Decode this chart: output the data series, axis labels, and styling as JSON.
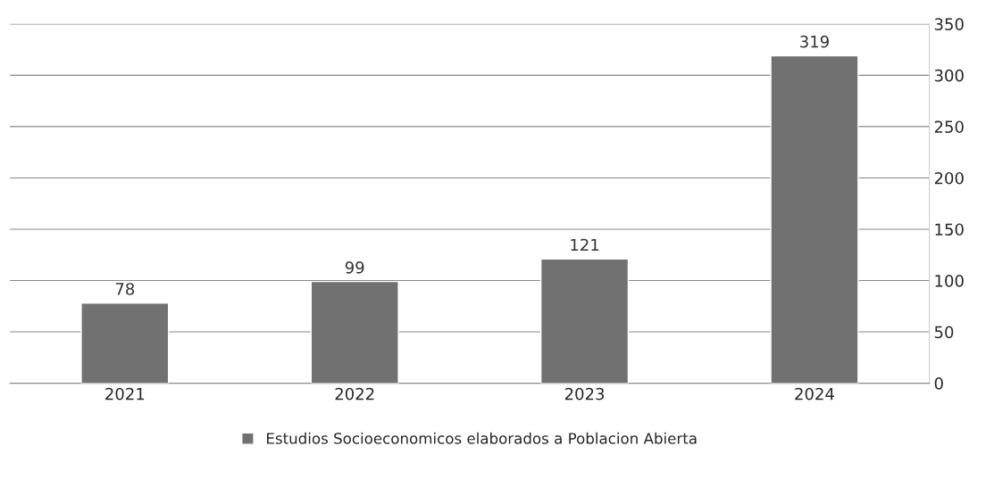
{
  "chart_data": {
    "type": "bar",
    "categories": [
      "2021",
      "2022",
      "2023",
      "2024"
    ],
    "series": [
      {
        "name": "Estudios Socioeconomicos elaborados a Poblacion Abierta",
        "color": "#717171",
        "values": [
          78,
          99,
          121,
          319
        ]
      }
    ],
    "ylim": [
      0,
      350
    ],
    "yticks": [
      0,
      50,
      100,
      150,
      200,
      250,
      300,
      350
    ],
    "grid": "y",
    "legend": "bottom",
    "data_labels": true
  }
}
